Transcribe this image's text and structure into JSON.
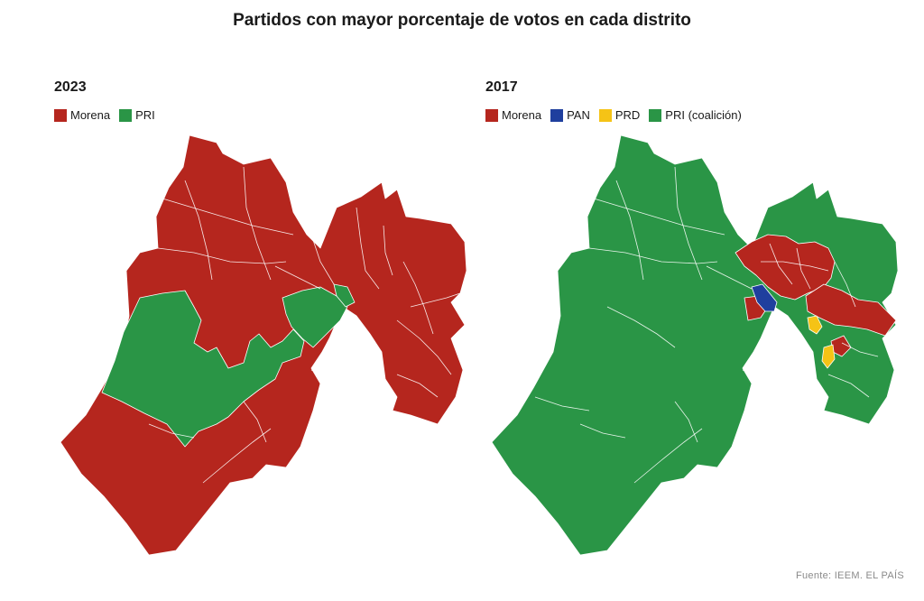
{
  "title": "Partidos con mayor porcentaje de votos en cada distrito",
  "colors": {
    "morena": "#b5261e",
    "pri": "#2a9546",
    "pan": "#1f3f9e",
    "prd": "#f5c316"
  },
  "panels": [
    {
      "year": "2023",
      "legend": [
        {
          "label": "Morena",
          "color": "#b5261e"
        },
        {
          "label": "PRI",
          "color": "#2a9546"
        }
      ]
    },
    {
      "year": "2017",
      "legend": [
        {
          "label": "Morena",
          "color": "#b5261e"
        },
        {
          "label": "PAN",
          "color": "#1f3f9e"
        },
        {
          "label": "PRD",
          "color": "#f5c316"
        },
        {
          "label": "PRI (coalición)",
          "color": "#2a9546"
        }
      ]
    }
  ],
  "source": "Fuente: IEEM. EL PAÍS"
}
